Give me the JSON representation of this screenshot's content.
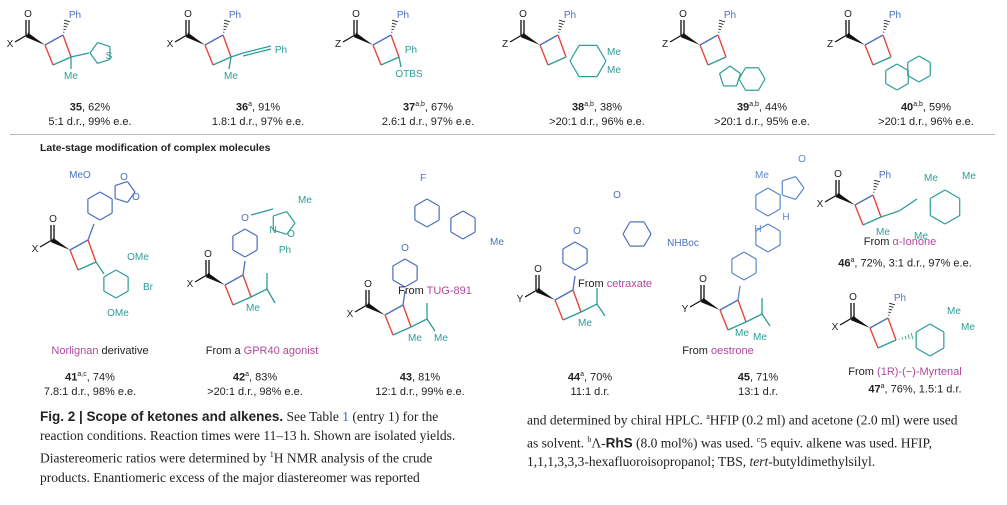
{
  "colors": {
    "ketone": "#111111",
    "ph_bond": "#4a6fc0",
    "new_bond": "#e2463f",
    "alkene": "#2a9d96",
    "natural": "#5b86cf",
    "highlight_label": "#b0489e",
    "link": "#2a6ebb"
  },
  "section_title": "Late-stage modification of complex molecules",
  "top_row": [
    {
      "id": "35",
      "sup": "",
      "yield": ", 62%",
      "selectivity": "5:1 d.r., 99% e.e.",
      "acyl": "X",
      "atoms": [
        "O",
        "Ph",
        "Me"
      ]
    },
    {
      "id": "36",
      "sup": "a",
      "yield": ", 91%",
      "selectivity": "1.8:1 d.r., 97% e.e.",
      "acyl": "X",
      "atoms": [
        "O",
        "Ph",
        "Me",
        "Ph"
      ]
    },
    {
      "id": "37",
      "sup": "a,b",
      "yield": ", 67%",
      "selectivity": "2.6:1 d.r., 97% e.e.",
      "acyl": "Z",
      "atoms": [
        "O",
        "Ph",
        "Ph",
        "OTBS"
      ]
    },
    {
      "id": "38",
      "sup": "a,b",
      "yield": ", 38%",
      "selectivity": ">20:1 d.r., 96% e.e.",
      "acyl": "Z",
      "atoms": [
        "O",
        "Ph",
        "Me",
        "Me"
      ]
    },
    {
      "id": "39",
      "sup": "a,b",
      "yield": ", 44%",
      "selectivity": ">20:1 d.r., 95% e.e.",
      "acyl": "Z",
      "atoms": [
        "O",
        "Ph"
      ]
    },
    {
      "id": "40",
      "sup": "a,b",
      "yield": ", 59%",
      "selectivity": ">20:1 d.r., 96% e.e.",
      "acyl": "Z",
      "atoms": [
        "O",
        "Ph"
      ]
    }
  ],
  "bottom_row": [
    {
      "id": "41",
      "sup": "a,c",
      "yield": ", 74%",
      "selectivity": "7.8:1 d.r., 98% e.e.",
      "acyl": "X",
      "source_pre": "",
      "source_name": "Norlignan",
      "source_post": " derivative",
      "atoms": [
        "O",
        "MeO",
        "O",
        "O",
        "OMe",
        "OMe",
        "Br"
      ]
    },
    {
      "id": "42",
      "sup": "a",
      "yield": ", 83%",
      "selectivity": ">20:1 d.r., 98% e.e.",
      "acyl": "X",
      "source_pre": "From a ",
      "source_name": "GPR40 agonist",
      "source_post": "",
      "atoms": [
        "O",
        "O",
        "N",
        "O",
        "Me",
        "Ph",
        "Me"
      ]
    },
    {
      "id": "43",
      "sup": "",
      "yield": ", 81%",
      "selectivity": "12:1 d.r., 99% e.e.",
      "acyl": "X",
      "source_pre": "From ",
      "source_name": "TUG-891",
      "source_post": "",
      "atoms": [
        "O",
        "F",
        "O",
        "Me",
        "Me",
        "Me"
      ]
    },
    {
      "id": "44",
      "sup": "a",
      "yield": ", 70%",
      "selectivity": "11:1 d.r.",
      "acyl": "Y",
      "source_pre": "From ",
      "source_name": "cetraxate",
      "source_post": "",
      "atoms": [
        "O",
        "O",
        "O",
        "NHBoc",
        "Me",
        "Me"
      ]
    },
    {
      "id": "45",
      "sup": "",
      "yield": ", 71%",
      "selectivity": "13:1 d.r.",
      "acyl": "Y",
      "source_pre": "From ",
      "source_name": "oestrone",
      "source_post": "",
      "atoms": [
        "O",
        "Me",
        "H",
        "H",
        "H",
        "O",
        "Me",
        "Me"
      ]
    },
    {
      "id": "46",
      "sup": "a",
      "yield": ", 72%, 3:1 d.r., 97% e.e.",
      "selectivity": "",
      "acyl": "X",
      "source_pre": "From ",
      "source_name": "α-Ionone",
      "source_post": "",
      "atoms": [
        "O",
        "Ph",
        "Me",
        "Me",
        "Me",
        "Me"
      ]
    },
    {
      "id": "47",
      "sup": "a",
      "yield": ", 76%, 1.5:1 d.r.",
      "selectivity": "",
      "acyl": "X",
      "source_pre": "From ",
      "source_name": "(1R)-(−)-Myrtenal",
      "source_post": "",
      "atoms": [
        "O",
        "Ph",
        "Me",
        "Me"
      ]
    }
  ],
  "caption": {
    "fig_label": "Fig. 2 | Scope of ketones and alkenes.",
    "p1": " See Table ",
    "table_ref": "1",
    "p2": " (entry 1) for the reaction conditions. Reaction times were 11–13 h. Shown are isolated yields. Diastereomeric ratios were determined by ",
    "nmr_sup": "1",
    "p3": "H NMR analysis of the crude products. Enantiomeric excess of the major diastereomer was reported",
    "p4": "and determined by chiral HPLC. ",
    "fa": "a",
    "p5": "HFIP (0.2 ml) and acetone (2.0 ml) were used as solvent. ",
    "fb": "b",
    "p6": "Λ-",
    "rhs": "RhS",
    "p7": " (8.0 mol%) was used. ",
    "fc": "c",
    "p8": "5 equiv. alkene was used. HFIP, 1,1,1,3,3,3-hexafluoroisopropanol; TBS, ",
    "tert": "tert",
    "p9": "-butyldimethylsilyl."
  }
}
